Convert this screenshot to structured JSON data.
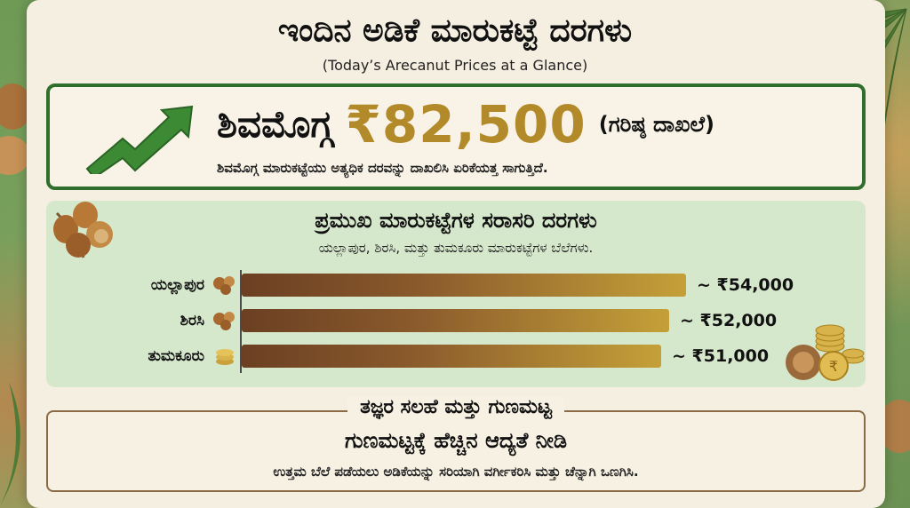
{
  "header": {
    "title": "ಇಂದಿನ ಅಡಿಕೆ ಮಾರುಕಟ್ಟೆ ದರಗಳು",
    "subtitle": "(Today’s Arecanut Prices at a Glance)"
  },
  "highlight": {
    "city": "ಶಿವಮೊಗ್ಗ",
    "price": "₹82,500",
    "note": "(ಗರಿಷ್ಠ ದಾಖಲೆ)",
    "description": "ಶಿವಮೊಗ್ಗ ಮಾರುಕಟ್ಟೆಯು ಅತ್ಯಧಿಕ ದರವನ್ನು ದಾಖಲಿಸಿ ಏರಿಕೆಯತ್ತ ಸಾಗುತ್ತಿದೆ.",
    "icon": "trend-up-arrow-icon"
  },
  "markets": {
    "title": "ಪ್ರಮುಖ ಮಾರುಕಟ್ಟೆಗಳ ಸರಾಸರಿ ದರಗಳು",
    "subtitle": "ಯಲ್ಲಾಪುರ, ಶಿರಸಿ, ಮತ್ತು ತುಮಕೂರು ಮಾರುಕಟ್ಟೆಗಳ ಬೆಲೆಗಳು.",
    "rows": [
      {
        "label": "ಯಲ್ಲಾಪುರ",
        "value_text": "~ ₹54,000",
        "icon": "arecanut-icon"
      },
      {
        "label": "ಶಿರಸಿ",
        "value_text": "~ ₹52,000",
        "icon": "arecanut-icon"
      },
      {
        "label": "ತುಮಕೂರು",
        "value_text": "~ ₹51,000",
        "icon": "coin-icon"
      }
    ]
  },
  "chart_data": {
    "type": "bar",
    "orientation": "horizontal",
    "categories": [
      "ಯಲ್ಲಾಪುರ",
      "ಶಿರಸಿ",
      "ತುಮಕೂರು"
    ],
    "values": [
      54000,
      52000,
      51000
    ]
  },
  "advice": {
    "heading": "ತಜ್ಞರ ಸಲಹೆ ಮತ್ತು ಗುಣಮಟ್ಟ",
    "title": "ಗುಣಮಟ್ಟಕ್ಕೆ ಹೆಚ್ಚಿನ ಆದ್ಯತೆ ನೀಡಿ",
    "text": "ಉತ್ತಮ ಬೆಲೆ ಪಡೆಯಲು ಅಡಿಕೆಯನ್ನು ಸರಿಯಾಗಿ ವರ್ಗೀಕರಿಸಿ ಮತ್ತು ಚೆನ್ನಾಗಿ ಒಣಗಿಸಿ."
  },
  "colors": {
    "accent_green": "#2f6e2c",
    "price_gold": "#b38a2a",
    "panel_green": "#d6e8cc",
    "bar_start": "#6b3f22",
    "bar_end": "#c5a038"
  }
}
